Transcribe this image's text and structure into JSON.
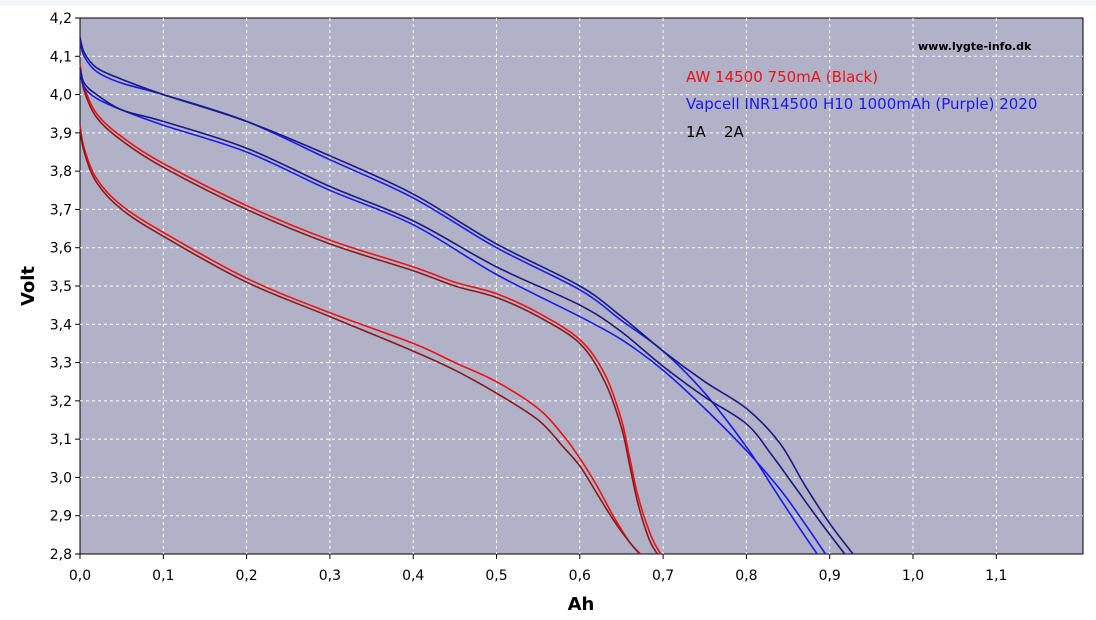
{
  "chart_data": {
    "type": "line",
    "watermark": "www.lygte-info.dk",
    "xlabel": "Ah",
    "ylabel": "Volt",
    "xlim": [
      0.0,
      1.2
    ],
    "ylim": [
      2.8,
      4.2
    ],
    "x_ticks": [
      "0,0",
      "0,1",
      "0,2",
      "0,3",
      "0,4",
      "0,5",
      "0,6",
      "0,7",
      "0,8",
      "0,9",
      "1,0",
      "1,1"
    ],
    "y_ticks": [
      "2,8",
      "2,9",
      "3,0",
      "3,1",
      "3,2",
      "3,3",
      "3,4",
      "3,5",
      "3,6",
      "3,7",
      "3,8",
      "3,9",
      "4,0",
      "4,1",
      "4,2"
    ],
    "grid": true,
    "legend": [
      {
        "text": "AW 14500 750mA (Black)",
        "color": "#ee1111"
      },
      {
        "text": "Vapcell INR14500 H10 1000mAh (Purple) 2020",
        "color": "#1a1aee"
      },
      {
        "text": "1A",
        "color": "#000000"
      },
      {
        "text": "2A",
        "color": "#000000"
      }
    ],
    "series": [
      {
        "group": "AW 14500 750mA (Black)",
        "current": "1A",
        "color": "#ee1111",
        "points": [
          [
            0,
            4.08
          ],
          [
            0.005,
            4.02
          ],
          [
            0.02,
            3.95
          ],
          [
            0.05,
            3.89
          ],
          [
            0.1,
            3.82
          ],
          [
            0.2,
            3.71
          ],
          [
            0.3,
            3.62
          ],
          [
            0.4,
            3.55
          ],
          [
            0.45,
            3.51
          ],
          [
            0.5,
            3.48
          ],
          [
            0.55,
            3.43
          ],
          [
            0.6,
            3.36
          ],
          [
            0.63,
            3.27
          ],
          [
            0.65,
            3.15
          ],
          [
            0.66,
            3.05
          ],
          [
            0.67,
            2.95
          ],
          [
            0.685,
            2.85
          ],
          [
            0.697,
            2.8
          ]
        ]
      },
      {
        "group": "AW 14500 750mA (Black)",
        "current": "1A",
        "color": "#8a1a1a",
        "points": [
          [
            0,
            4.07
          ],
          [
            0.005,
            4.01
          ],
          [
            0.02,
            3.94
          ],
          [
            0.05,
            3.88
          ],
          [
            0.1,
            3.81
          ],
          [
            0.2,
            3.7
          ],
          [
            0.3,
            3.61
          ],
          [
            0.4,
            3.54
          ],
          [
            0.45,
            3.5
          ],
          [
            0.5,
            3.47
          ],
          [
            0.55,
            3.42
          ],
          [
            0.6,
            3.35
          ],
          [
            0.63,
            3.25
          ],
          [
            0.65,
            3.13
          ],
          [
            0.66,
            3.03
          ],
          [
            0.67,
            2.93
          ],
          [
            0.683,
            2.84
          ],
          [
            0.693,
            2.8
          ]
        ]
      },
      {
        "group": "AW 14500 750mA (Black)",
        "current": "2A",
        "color": "#ee1111",
        "points": [
          [
            0,
            3.92
          ],
          [
            0.005,
            3.86
          ],
          [
            0.02,
            3.78
          ],
          [
            0.05,
            3.71
          ],
          [
            0.1,
            3.64
          ],
          [
            0.2,
            3.52
          ],
          [
            0.3,
            3.43
          ],
          [
            0.4,
            3.35
          ],
          [
            0.45,
            3.3
          ],
          [
            0.5,
            3.25
          ],
          [
            0.55,
            3.18
          ],
          [
            0.58,
            3.11
          ],
          [
            0.6,
            3.05
          ],
          [
            0.62,
            2.98
          ],
          [
            0.64,
            2.9
          ],
          [
            0.66,
            2.83
          ],
          [
            0.673,
            2.8
          ]
        ]
      },
      {
        "group": "AW 14500 750mA (Black)",
        "current": "2A",
        "color": "#8a1a1a",
        "points": [
          [
            0,
            3.91
          ],
          [
            0.005,
            3.85
          ],
          [
            0.02,
            3.77
          ],
          [
            0.05,
            3.7
          ],
          [
            0.1,
            3.63
          ],
          [
            0.2,
            3.51
          ],
          [
            0.3,
            3.42
          ],
          [
            0.4,
            3.33
          ],
          [
            0.45,
            3.28
          ],
          [
            0.5,
            3.22
          ],
          [
            0.55,
            3.15
          ],
          [
            0.58,
            3.08
          ],
          [
            0.6,
            3.03
          ],
          [
            0.62,
            2.96
          ],
          [
            0.64,
            2.89
          ],
          [
            0.66,
            2.83
          ],
          [
            0.672,
            2.8
          ]
        ]
      },
      {
        "group": "Vapcell INR14500 H10 1000mAh (Purple) 2020",
        "current": "1A",
        "color": "#1a1aee",
        "points": [
          [
            0,
            4.14
          ],
          [
            0.005,
            4.1
          ],
          [
            0.02,
            4.06
          ],
          [
            0.05,
            4.03
          ],
          [
            0.1,
            4.0
          ],
          [
            0.2,
            3.93
          ],
          [
            0.3,
            3.83
          ],
          [
            0.4,
            3.73
          ],
          [
            0.5,
            3.6
          ],
          [
            0.6,
            3.49
          ],
          [
            0.65,
            3.41
          ],
          [
            0.7,
            3.33
          ],
          [
            0.75,
            3.22
          ],
          [
            0.8,
            3.08
          ],
          [
            0.83,
            2.98
          ],
          [
            0.86,
            2.88
          ],
          [
            0.885,
            2.8
          ]
        ]
      },
      {
        "group": "Vapcell INR14500 H10 1000mAh (Purple) 2020",
        "current": "1A",
        "color": "#1a1a80",
        "points": [
          [
            0,
            4.15
          ],
          [
            0.005,
            4.11
          ],
          [
            0.02,
            4.07
          ],
          [
            0.05,
            4.04
          ],
          [
            0.1,
            4.0
          ],
          [
            0.2,
            3.93
          ],
          [
            0.3,
            3.84
          ],
          [
            0.4,
            3.74
          ],
          [
            0.5,
            3.61
          ],
          [
            0.6,
            3.5
          ],
          [
            0.65,
            3.42
          ],
          [
            0.7,
            3.33
          ],
          [
            0.75,
            3.25
          ],
          [
            0.8,
            3.18
          ],
          [
            0.84,
            3.09
          ],
          [
            0.87,
            2.98
          ],
          [
            0.9,
            2.88
          ],
          [
            0.928,
            2.8
          ]
        ]
      },
      {
        "group": "Vapcell INR14500 H10 1000mAh (Purple) 2020",
        "current": "2A",
        "color": "#1a1aee",
        "points": [
          [
            0,
            4.06
          ],
          [
            0.005,
            4.02
          ],
          [
            0.02,
            3.99
          ],
          [
            0.05,
            3.96
          ],
          [
            0.1,
            3.92
          ],
          [
            0.2,
            3.85
          ],
          [
            0.3,
            3.75
          ],
          [
            0.4,
            3.66
          ],
          [
            0.5,
            3.53
          ],
          [
            0.6,
            3.42
          ],
          [
            0.65,
            3.36
          ],
          [
            0.7,
            3.28
          ],
          [
            0.75,
            3.18
          ],
          [
            0.8,
            3.07
          ],
          [
            0.84,
            2.97
          ],
          [
            0.87,
            2.88
          ],
          [
            0.895,
            2.8
          ]
        ]
      },
      {
        "group": "Vapcell INR14500 H10 1000mAh (Purple) 2020",
        "current": "2A",
        "color": "#1a1a80",
        "points": [
          [
            0,
            4.07
          ],
          [
            0.005,
            4.03
          ],
          [
            0.02,
            4.0
          ],
          [
            0.05,
            3.96
          ],
          [
            0.1,
            3.93
          ],
          [
            0.2,
            3.86
          ],
          [
            0.3,
            3.76
          ],
          [
            0.4,
            3.67
          ],
          [
            0.5,
            3.55
          ],
          [
            0.6,
            3.45
          ],
          [
            0.65,
            3.38
          ],
          [
            0.7,
            3.29
          ],
          [
            0.75,
            3.21
          ],
          [
            0.8,
            3.14
          ],
          [
            0.83,
            3.06
          ],
          [
            0.86,
            2.97
          ],
          [
            0.89,
            2.88
          ],
          [
            0.918,
            2.8
          ]
        ]
      }
    ]
  }
}
